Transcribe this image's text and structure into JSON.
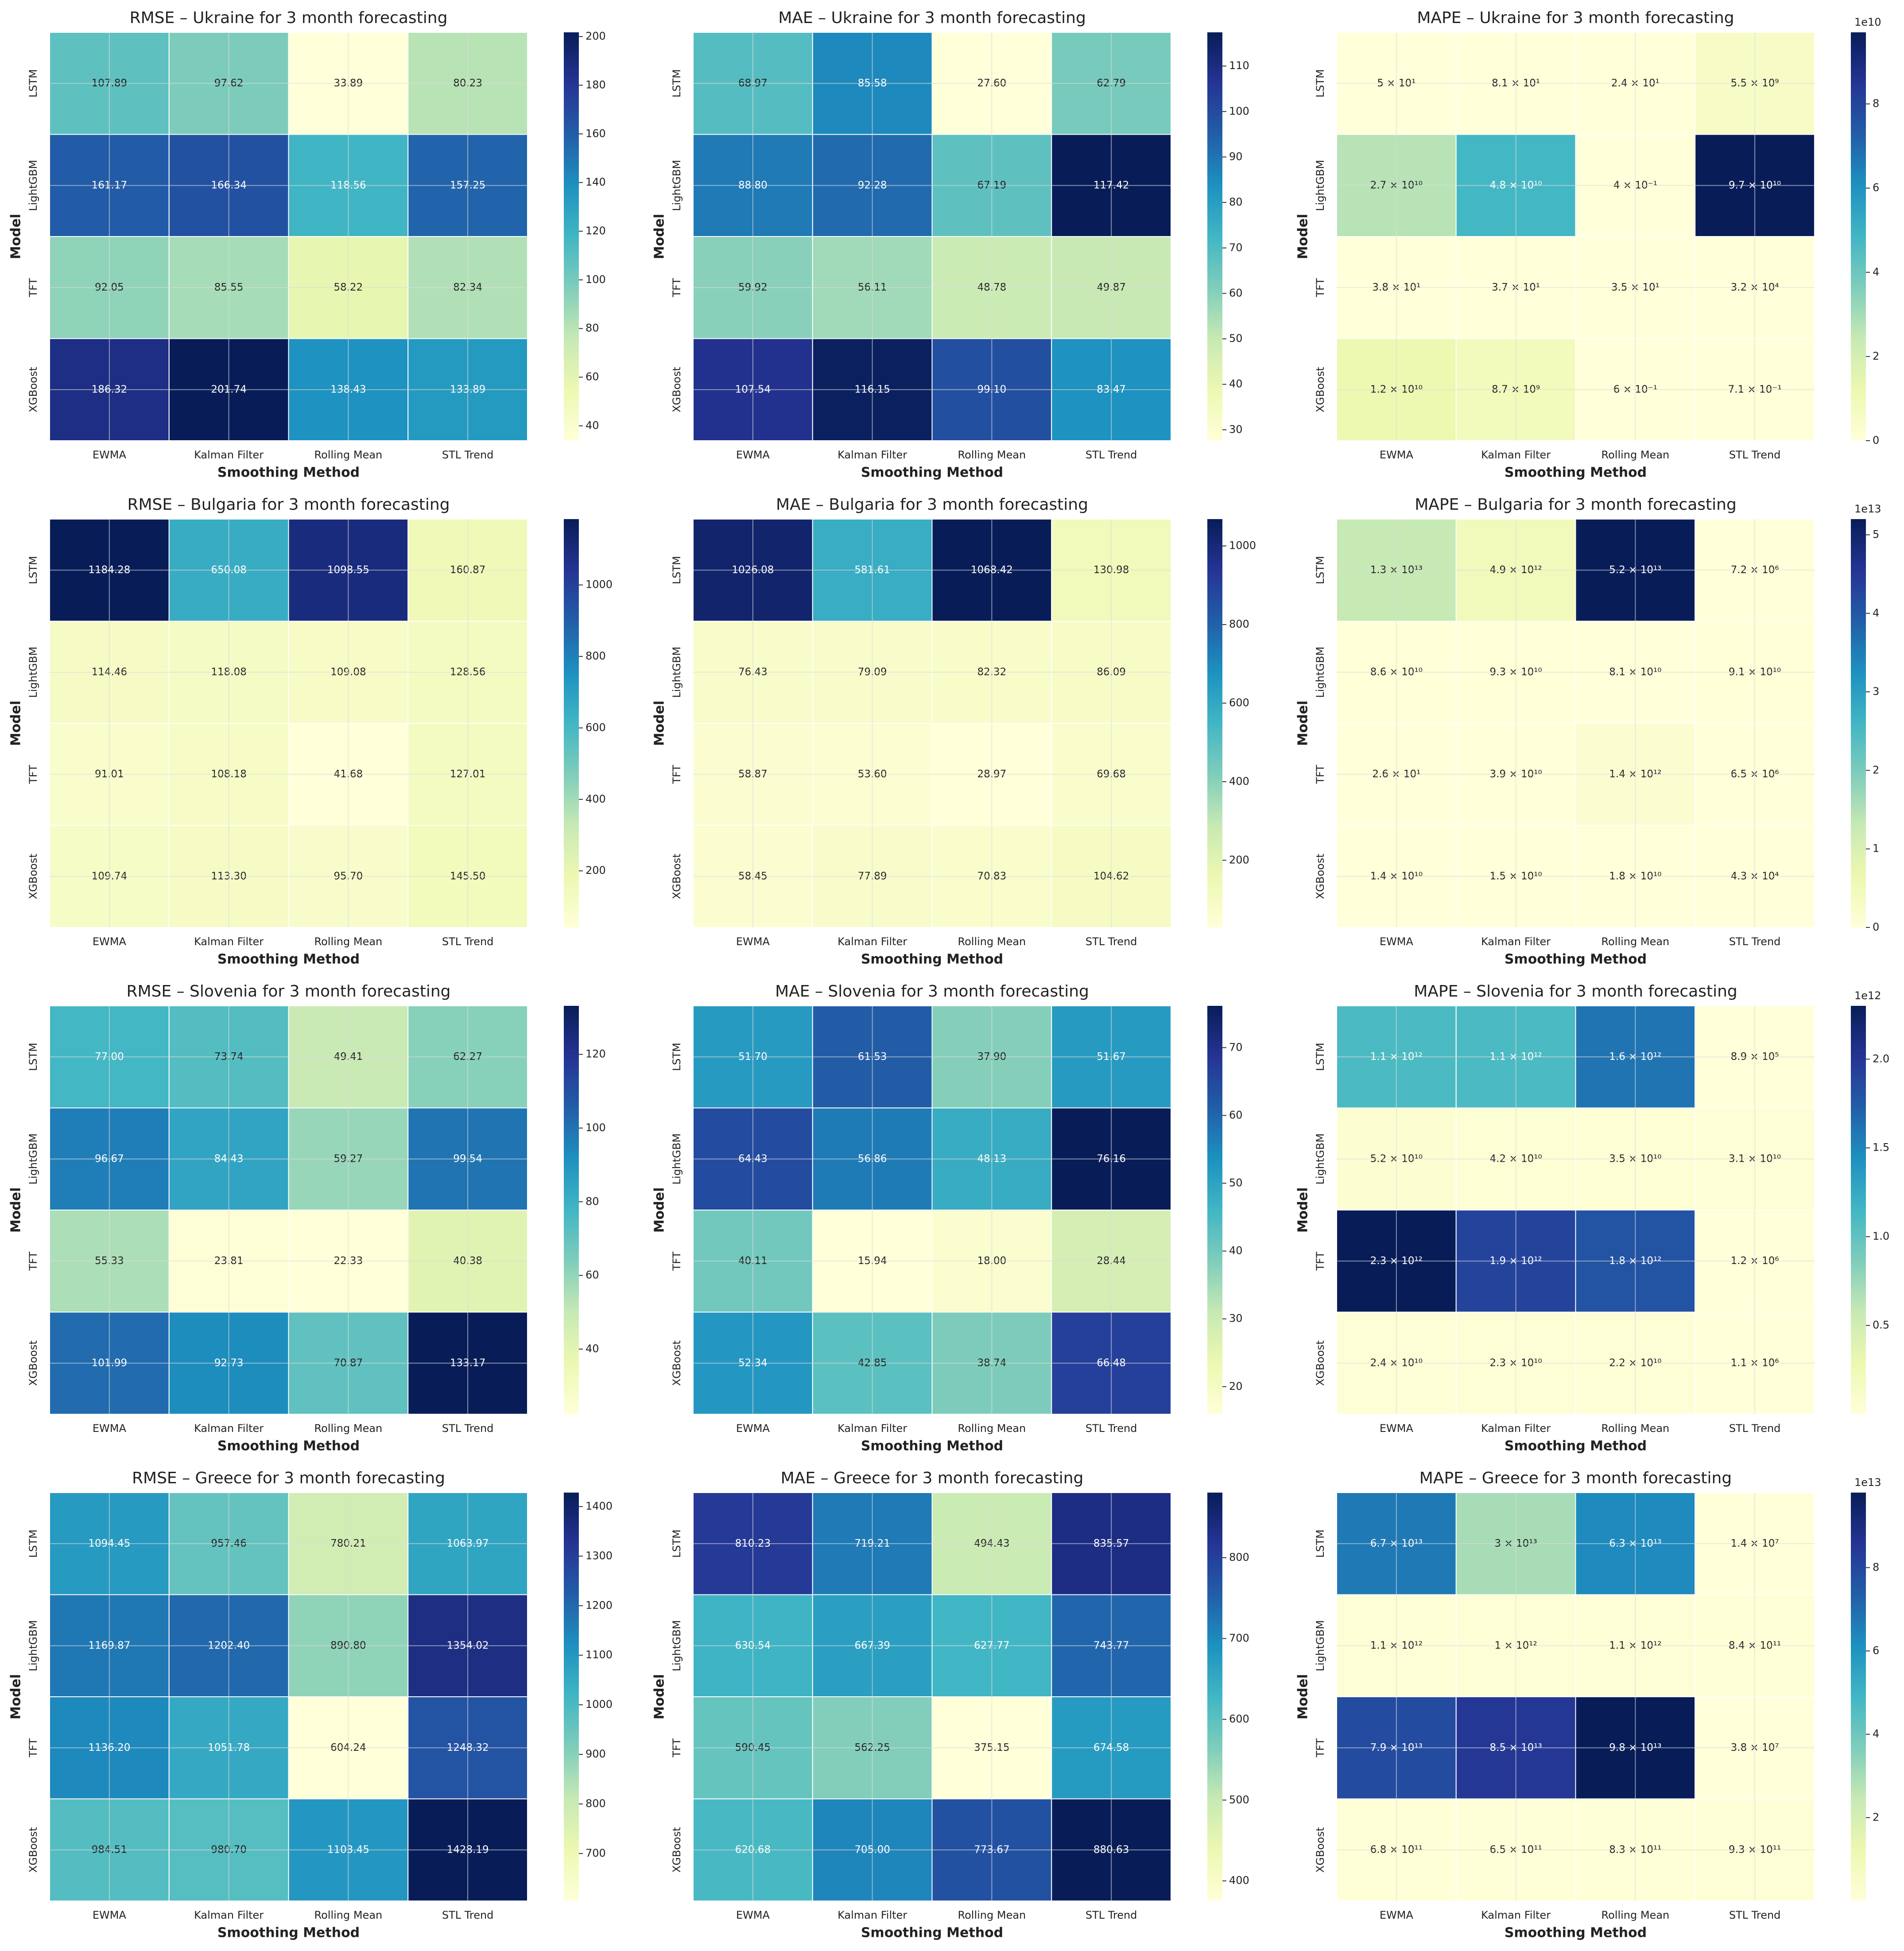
{
  "chart_data": [
    {
      "type": "heatmap",
      "title": "RMSE – Ukraine for 3 month forecasting",
      "xlabel": "Smoothing Method",
      "ylabel": "Model",
      "categories": [
        "EWMA",
        "Kalman Filter",
        "Rolling Mean",
        "STL Trend"
      ],
      "rows": [
        "LSTM",
        "LightGBM",
        "TFT",
        "XGBoost"
      ],
      "values": [
        [
          107.89,
          97.62,
          33.89,
          80.23
        ],
        [
          161.17,
          166.34,
          118.56,
          157.25
        ],
        [
          92.05,
          85.55,
          58.22,
          82.34
        ],
        [
          186.32,
          201.74,
          138.43,
          133.89
        ]
      ],
      "value_labels": [
        [
          "107.89",
          "97.62",
          "33.89",
          "80.23"
        ],
        [
          "161.17",
          "166.34",
          "118.56",
          "157.25"
        ],
        [
          "92.05",
          "85.55",
          "58.22",
          "82.34"
        ],
        [
          "186.32",
          "201.74",
          "138.43",
          "133.89"
        ]
      ],
      "zlim": [
        33.89,
        201.74
      ],
      "zticks": [
        40,
        60,
        80,
        100,
        120,
        140,
        160,
        180,
        200
      ],
      "colormap": "YlGnBu",
      "grid": true
    },
    {
      "type": "heatmap",
      "title": "MAE – Ukraine for 3 month forecasting",
      "xlabel": "Smoothing Method",
      "ylabel": "Model",
      "categories": [
        "EWMA",
        "Kalman Filter",
        "Rolling Mean",
        "STL Trend"
      ],
      "rows": [
        "LSTM",
        "LightGBM",
        "TFT",
        "XGBoost"
      ],
      "values": [
        [
          68.97,
          85.58,
          27.6,
          62.79
        ],
        [
          88.8,
          92.28,
          67.19,
          117.42
        ],
        [
          59.92,
          56.11,
          48.78,
          49.87
        ],
        [
          107.54,
          116.15,
          99.1,
          83.47
        ]
      ],
      "value_labels": [
        [
          "68.97",
          "85.58",
          "27.60",
          "62.79"
        ],
        [
          "88.80",
          "92.28",
          "67.19",
          "117.42"
        ],
        [
          "59.92",
          "56.11",
          "48.78",
          "49.87"
        ],
        [
          "107.54",
          "116.15",
          "99.10",
          "83.47"
        ]
      ],
      "zlim": [
        27.6,
        117.42
      ],
      "zticks": [
        30,
        40,
        50,
        60,
        70,
        80,
        90,
        100,
        110
      ],
      "colormap": "YlGnBu",
      "grid": true
    },
    {
      "type": "heatmap",
      "title": "MAPE – Ukraine for 3 month forecasting",
      "xlabel": "Smoothing Method",
      "ylabel": "Model",
      "categories": [
        "EWMA",
        "Kalman Filter",
        "Rolling Mean",
        "STL Trend"
      ],
      "rows": [
        "LSTM",
        "LightGBM",
        "TFT",
        "XGBoost"
      ],
      "values": [
        [
          50,
          81,
          24,
          5500000000.0
        ],
        [
          27000000000.0,
          48000000000.0,
          0.4,
          97000000000.0
        ],
        [
          38,
          37,
          35,
          32000
        ],
        [
          12000000000.0,
          8700000000.0,
          0.6,
          0.71
        ]
      ],
      "value_labels": [
        [
          "5 × 10¹",
          "8.1 × 10¹",
          "2.4 × 10¹",
          "5.5 × 10⁹"
        ],
        [
          "2.7 × 10¹⁰",
          "4.8 × 10¹⁰",
          "4 × 10⁻¹",
          "9.7 × 10¹⁰"
        ],
        [
          "3.8 × 10¹",
          "3.7 × 10¹",
          "3.5 × 10¹",
          "3.2 × 10⁴"
        ],
        [
          "1.2 × 10¹⁰",
          "8.7 × 10⁹",
          "6 × 10⁻¹",
          "7.1 × 10⁻¹"
        ]
      ],
      "zlim": [
        0.4,
        97000000000.0
      ],
      "zticks": [
        0,
        {
          "value": 20000000000.0,
          "label": "2"
        },
        {
          "value": 40000000000.0,
          "label": "4"
        },
        {
          "value": 60000000000.0,
          "label": "6"
        },
        {
          "value": 80000000000.0,
          "label": "8"
        }
      ],
      "colorbar_offset": "1e10",
      "colormap": "YlGnBu",
      "grid": true
    },
    {
      "type": "heatmap",
      "title": "RMSE – Bulgaria for 3 month forecasting",
      "xlabel": "Smoothing Method",
      "ylabel": "Model",
      "categories": [
        "EWMA",
        "Kalman Filter",
        "Rolling Mean",
        "STL Trend"
      ],
      "rows": [
        "LSTM",
        "LightGBM",
        "TFT",
        "XGBoost"
      ],
      "values": [
        [
          1184.28,
          650.08,
          1098.55,
          160.87
        ],
        [
          114.46,
          118.08,
          109.08,
          128.56
        ],
        [
          91.01,
          108.18,
          41.68,
          127.01
        ],
        [
          109.74,
          113.3,
          95.7,
          145.5
        ]
      ],
      "value_labels": [
        [
          "1184.28",
          "650.08",
          "1098.55",
          "160.87"
        ],
        [
          "114.46",
          "118.08",
          "109.08",
          "128.56"
        ],
        [
          "91.01",
          "108.18",
          "41.68",
          "127.01"
        ],
        [
          "109.74",
          "113.30",
          "95.70",
          "145.50"
        ]
      ],
      "zlim": [
        41.68,
        1184.28
      ],
      "zticks": [
        200,
        400,
        600,
        800,
        1000
      ],
      "colormap": "YlGnBu",
      "grid": true
    },
    {
      "type": "heatmap",
      "title": "MAE – Bulgaria for 3 month forecasting",
      "xlabel": "Smoothing Method",
      "ylabel": "Model",
      "categories": [
        "EWMA",
        "Kalman Filter",
        "Rolling Mean",
        "STL Trend"
      ],
      "rows": [
        "LSTM",
        "LightGBM",
        "TFT",
        "XGBoost"
      ],
      "values": [
        [
          1026.08,
          581.61,
          1068.42,
          130.98
        ],
        [
          76.43,
          79.09,
          82.32,
          86.09
        ],
        [
          58.87,
          53.6,
          28.97,
          69.68
        ],
        [
          58.45,
          77.89,
          70.83,
          104.62
        ]
      ],
      "value_labels": [
        [
          "1026.08",
          "581.61",
          "1068.42",
          "130.98"
        ],
        [
          "76.43",
          "79.09",
          "82.32",
          "86.09"
        ],
        [
          "58.87",
          "53.60",
          "28.97",
          "69.68"
        ],
        [
          "58.45",
          "77.89",
          "70.83",
          "104.62"
        ]
      ],
      "zlim": [
        28.97,
        1068.42
      ],
      "zticks": [
        200,
        400,
        600,
        800,
        1000
      ],
      "colormap": "YlGnBu",
      "grid": true
    },
    {
      "type": "heatmap",
      "title": "MAPE – Bulgaria for 3 month forecasting",
      "xlabel": "Smoothing Method",
      "ylabel": "Model",
      "categories": [
        "EWMA",
        "Kalman Filter",
        "Rolling Mean",
        "STL Trend"
      ],
      "rows": [
        "LSTM",
        "LightGBM",
        "TFT",
        "XGBoost"
      ],
      "values": [
        [
          13000000000000.0,
          4900000000000.0,
          52000000000000.0,
          7200000.0
        ],
        [
          86000000000.0,
          93000000000.0,
          81000000000.0,
          91000000000.0
        ],
        [
          26,
          39000000000.0,
          1400000000000.0,
          6500000.0
        ],
        [
          14000000000.0,
          15000000000.0,
          18000000000.0,
          43000
        ]
      ],
      "value_labels": [
        [
          "1.3 × 10¹³",
          "4.9 × 10¹²",
          "5.2 × 10¹³",
          "7.2 × 10⁶"
        ],
        [
          "8.6 × 10¹⁰",
          "9.3 × 10¹⁰",
          "8.1 × 10¹⁰",
          "9.1 × 10¹⁰"
        ],
        [
          "2.6 × 10¹",
          "3.9 × 10¹⁰",
          "1.4 × 10¹²",
          "6.5 × 10⁶"
        ],
        [
          "1.4 × 10¹⁰",
          "1.5 × 10¹⁰",
          "1.8 × 10¹⁰",
          "4.3 × 10⁴"
        ]
      ],
      "zlim": [
        26,
        52000000000000.0
      ],
      "zticks": [
        0,
        {
          "value": 10000000000000.0,
          "label": "1"
        },
        {
          "value": 20000000000000.0,
          "label": "2"
        },
        {
          "value": 30000000000000.0,
          "label": "3"
        },
        {
          "value": 40000000000000.0,
          "label": "4"
        },
        {
          "value": 50000000000000.0,
          "label": "5"
        }
      ],
      "colorbar_offset": "1e13",
      "colormap": "YlGnBu",
      "grid": true
    },
    {
      "type": "heatmap",
      "title": "RMSE – Slovenia for 3 month forecasting",
      "xlabel": "Smoothing Method",
      "ylabel": "Model",
      "categories": [
        "EWMA",
        "Kalman Filter",
        "Rolling Mean",
        "STL Trend"
      ],
      "rows": [
        "LSTM",
        "LightGBM",
        "TFT",
        "XGBoost"
      ],
      "values": [
        [
          77,
          73.74,
          49.41,
          62.27
        ],
        [
          96.67,
          84.43,
          59.27,
          99.54
        ],
        [
          55.33,
          23.81,
          22.33,
          40.38
        ],
        [
          101.99,
          92.73,
          70.87,
          133.17
        ]
      ],
      "value_labels": [
        [
          "77.00",
          "73.74",
          "49.41",
          "62.27"
        ],
        [
          "96.67",
          "84.43",
          "59.27",
          "99.54"
        ],
        [
          "55.33",
          "23.81",
          "22.33",
          "40.38"
        ],
        [
          "101.99",
          "92.73",
          "70.87",
          "133.17"
        ]
      ],
      "zlim": [
        22.33,
        133.17
      ],
      "zticks": [
        40,
        60,
        80,
        100,
        120
      ],
      "colormap": "YlGnBu",
      "grid": true
    },
    {
      "type": "heatmap",
      "title": "MAE – Slovenia for 3 month forecasting",
      "xlabel": "Smoothing Method",
      "ylabel": "Model",
      "categories": [
        "EWMA",
        "Kalman Filter",
        "Rolling Mean",
        "STL Trend"
      ],
      "rows": [
        "LSTM",
        "LightGBM",
        "TFT",
        "XGBoost"
      ],
      "values": [
        [
          51.7,
          61.53,
          37.9,
          51.67
        ],
        [
          64.43,
          56.86,
          48.13,
          76.16
        ],
        [
          40.11,
          15.94,
          18,
          28.44
        ],
        [
          52.34,
          42.85,
          38.74,
          66.48
        ]
      ],
      "value_labels": [
        [
          "51.70",
          "61.53",
          "37.90",
          "51.67"
        ],
        [
          "64.43",
          "56.86",
          "48.13",
          "76.16"
        ],
        [
          "40.11",
          "15.94",
          "18.00",
          "28.44"
        ],
        [
          "52.34",
          "42.85",
          "38.74",
          "66.48"
        ]
      ],
      "zlim": [
        15.94,
        76.16
      ],
      "zticks": [
        20,
        30,
        40,
        50,
        60,
        70
      ],
      "colormap": "YlGnBu",
      "grid": true
    },
    {
      "type": "heatmap",
      "title": "MAPE – Slovenia for 3 month forecasting",
      "xlabel": "Smoothing Method",
      "ylabel": "Model",
      "categories": [
        "EWMA",
        "Kalman Filter",
        "Rolling Mean",
        "STL Trend"
      ],
      "rows": [
        "LSTM",
        "LightGBM",
        "TFT",
        "XGBoost"
      ],
      "values": [
        [
          1100000000000.0,
          1100000000000.0,
          1600000000000.0,
          890000
        ],
        [
          52000000000.0,
          42000000000.0,
          35000000000.0,
          31000000000.0
        ],
        [
          2300000000000.0,
          1900000000000.0,
          1800000000000.0,
          1200000
        ],
        [
          24000000000.0,
          23000000000.0,
          22000000000.0,
          1100000
        ]
      ],
      "value_labels": [
        [
          "1.1 × 10¹²",
          "1.1 × 10¹²",
          "1.6 × 10¹²",
          "8.9 × 10⁵"
        ],
        [
          "5.2 × 10¹⁰",
          "4.2 × 10¹⁰",
          "3.5 × 10¹⁰",
          "3.1 × 10¹⁰"
        ],
        [
          "2.3 × 10¹²",
          "1.9 × 10¹²",
          "1.8 × 10¹²",
          "1.2 × 10⁶"
        ],
        [
          "2.4 × 10¹⁰",
          "2.3 × 10¹⁰",
          "2.2 × 10¹⁰",
          "1.1 × 10⁶"
        ]
      ],
      "zlim": [
        890000,
        2300000000000.0
      ],
      "zticks": [
        {
          "value": 500000000000.0,
          "label": "0.5"
        },
        {
          "value": 1000000000000.0,
          "label": "1.0"
        },
        {
          "value": 1500000000000.0,
          "label": "1.5"
        },
        {
          "value": 2000000000000.0,
          "label": "2.0"
        }
      ],
      "colorbar_offset": "1e12",
      "colormap": "YlGnBu",
      "grid": true
    },
    {
      "type": "heatmap",
      "title": "RMSE – Greece for 3 month forecasting",
      "xlabel": "Smoothing Method",
      "ylabel": "Model",
      "categories": [
        "EWMA",
        "Kalman Filter",
        "Rolling Mean",
        "STL Trend"
      ],
      "rows": [
        "LSTM",
        "LightGBM",
        "TFT",
        "XGBoost"
      ],
      "values": [
        [
          1094.45,
          957.46,
          780.21,
          1063.97
        ],
        [
          1169.87,
          1202.4,
          890.8,
          1354.02
        ],
        [
          1136.2,
          1051.78,
          604.24,
          1248.32
        ],
        [
          984.51,
          980.7,
          1103.45,
          1428.19
        ]
      ],
      "value_labels": [
        [
          "1094.45",
          "957.46",
          "780.21",
          "1063.97"
        ],
        [
          "1169.87",
          "1202.40",
          "890.80",
          "1354.02"
        ],
        [
          "1136.20",
          "1051.78",
          "604.24",
          "1248.32"
        ],
        [
          "984.51",
          "980.70",
          "1103.45",
          "1428.19"
        ]
      ],
      "zlim": [
        604.24,
        1428.19
      ],
      "zticks": [
        700,
        800,
        900,
        1000,
        1100,
        1200,
        1300,
        1400
      ],
      "colormap": "YlGnBu",
      "grid": true
    },
    {
      "type": "heatmap",
      "title": "MAE – Greece for 3 month forecasting",
      "xlabel": "Smoothing Method",
      "ylabel": "Model",
      "categories": [
        "EWMA",
        "Kalman Filter",
        "Rolling Mean",
        "STL Trend"
      ],
      "rows": [
        "LSTM",
        "LightGBM",
        "TFT",
        "XGBoost"
      ],
      "values": [
        [
          810.23,
          719.21,
          494.43,
          835.57
        ],
        [
          630.54,
          667.39,
          627.77,
          743.77
        ],
        [
          590.45,
          562.25,
          375.15,
          674.58
        ],
        [
          620.68,
          705,
          773.67,
          880.63
        ]
      ],
      "value_labels": [
        [
          "810.23",
          "719.21",
          "494.43",
          "835.57"
        ],
        [
          "630.54",
          "667.39",
          "627.77",
          "743.77"
        ],
        [
          "590.45",
          "562.25",
          "375.15",
          "674.58"
        ],
        [
          "620.68",
          "705.00",
          "773.67",
          "880.63"
        ]
      ],
      "zlim": [
        375.15,
        880.63
      ],
      "zticks": [
        400,
        500,
        600,
        700,
        800
      ],
      "colormap": "YlGnBu",
      "grid": true
    },
    {
      "type": "heatmap",
      "title": "MAPE – Greece for 3 month forecasting",
      "xlabel": "Smoothing Method",
      "ylabel": "Model",
      "categories": [
        "EWMA",
        "Kalman Filter",
        "Rolling Mean",
        "STL Trend"
      ],
      "rows": [
        "LSTM",
        "LightGBM",
        "TFT",
        "XGBoost"
      ],
      "values": [
        [
          67000000000000.0,
          30000000000000.0,
          63000000000000.0,
          14000000
        ],
        [
          1100000000000.0,
          1000000000000.0,
          1100000000000.0,
          840000000000.0
        ],
        [
          79000000000000.0,
          85000000000000.0,
          98000000000000.0,
          38000000
        ],
        [
          680000000000.0,
          650000000000.0,
          830000000000.0,
          930000000000.0
        ]
      ],
      "value_labels": [
        [
          "6.7 × 10¹³",
          "3 × 10¹³",
          "6.3 × 10¹³",
          "1.4 × 10⁷"
        ],
        [
          "1.1 × 10¹²",
          "1 × 10¹²",
          "1.1 × 10¹²",
          "8.4 × 10¹¹"
        ],
        [
          "7.9 × 10¹³",
          "8.5 × 10¹³",
          "9.8 × 10¹³",
          "3.8 × 10⁷"
        ],
        [
          "6.8 × 10¹¹",
          "6.5 × 10¹¹",
          "8.3 × 10¹¹",
          "9.3 × 10¹¹"
        ]
      ],
      "zlim": [
        14000000,
        98000000000000.0
      ],
      "zticks": [
        {
          "value": 20000000000000.0,
          "label": "2"
        },
        {
          "value": 40000000000000.0,
          "label": "4"
        },
        {
          "value": 60000000000000.0,
          "label": "6"
        },
        {
          "value": 80000000000000.0,
          "label": "8"
        }
      ],
      "colorbar_offset": "1e13",
      "colormap": "YlGnBu",
      "grid": true
    }
  ]
}
